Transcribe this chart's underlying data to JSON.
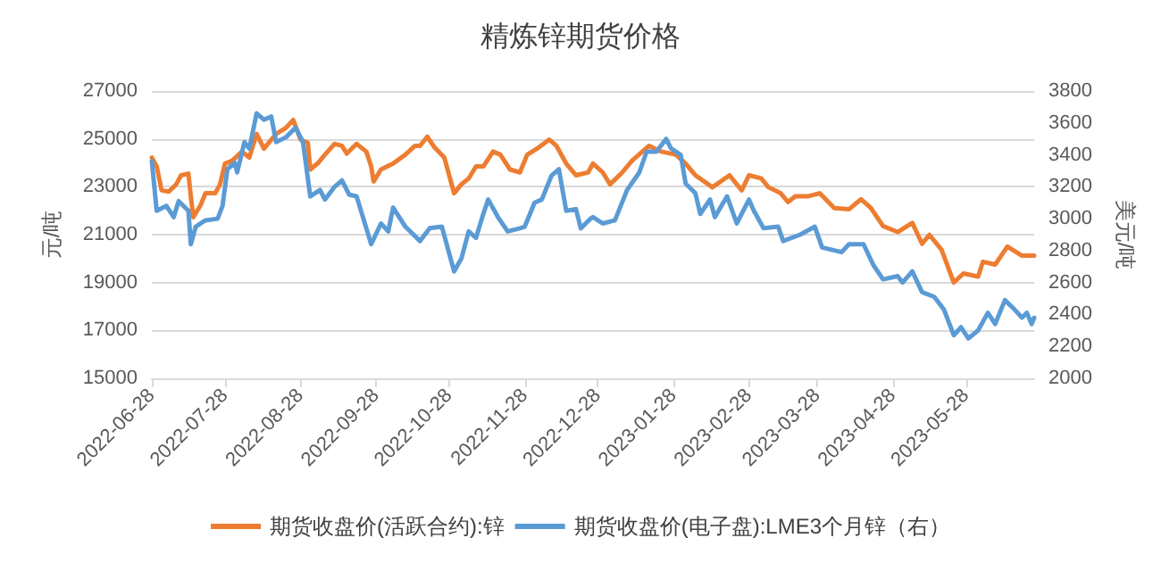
{
  "chart_data": {
    "type": "line",
    "title": "精炼锌期货价格",
    "ylabel": "元/吨",
    "y2label": "美元/吨",
    "xlim": [
      "2022-06-28",
      "2023-06-25"
    ],
    "xticks": [
      "2022-06-28",
      "2022-07-28",
      "2022-08-28",
      "2022-09-28",
      "2022-10-28",
      "2022-11-28",
      "2022-12-28",
      "2023-01-28",
      "2023-02-28",
      "2023-03-28",
      "2023-04-28",
      "2023-05-28"
    ],
    "ylim": [
      15000,
      27000
    ],
    "yticks": [
      15000,
      17000,
      19000,
      21000,
      23000,
      25000,
      27000
    ],
    "y2lim": [
      2000,
      3800
    ],
    "y2ticks": [
      2000,
      2200,
      2400,
      2600,
      2800,
      3000,
      3200,
      3400,
      3600,
      3800
    ],
    "grid": "y",
    "legend": "bottom",
    "marker": "none",
    "line_style": "solid",
    "series": [
      {
        "name": "期货收盘价(活跃合约):锌",
        "color": "#ed7d31",
        "x": [
          "2022-06-28",
          "2022-06-30",
          "2022-07-02",
          "2022-07-05",
          "2022-07-08",
          "2022-07-10",
          "2022-07-13",
          "2022-07-14",
          "2022-07-15",
          "2022-07-18",
          "2022-07-20",
          "2022-07-24",
          "2022-07-26",
          "2022-07-28",
          "2022-07-31",
          "2022-08-04",
          "2022-08-07",
          "2022-08-10",
          "2022-08-13",
          "2022-08-18",
          "2022-08-22",
          "2022-08-25",
          "2022-08-28",
          "2022-08-31",
          "2022-09-01",
          "2022-09-04",
          "2022-09-07",
          "2022-09-11",
          "2022-09-14",
          "2022-09-16",
          "2022-09-20",
          "2022-09-24",
          "2022-09-26",
          "2022-09-27",
          "2022-09-30",
          "2022-10-05",
          "2022-10-10",
          "2022-10-14",
          "2022-10-16",
          "2022-10-19",
          "2022-10-22",
          "2022-10-26",
          "2022-10-30",
          "2022-11-02",
          "2022-11-05",
          "2022-11-08",
          "2022-11-11",
          "2022-11-15",
          "2022-11-18",
          "2022-11-22",
          "2022-11-26",
          "2022-11-29",
          "2022-12-03",
          "2022-12-08",
          "2022-12-11",
          "2022-12-15",
          "2022-12-19",
          "2022-12-24",
          "2022-12-26",
          "2022-12-30",
          "2023-01-02",
          "2023-01-07",
          "2023-01-11",
          "2023-01-18",
          "2023-01-23",
          "2023-01-29",
          "2023-02-02",
          "2023-02-06",
          "2023-02-13",
          "2023-02-20",
          "2023-02-25",
          "2023-02-28",
          "2023-03-05",
          "2023-03-08",
          "2023-03-13",
          "2023-03-16",
          "2023-03-19",
          "2023-03-24",
          "2023-03-29",
          "2023-04-04",
          "2023-04-10",
          "2023-04-15",
          "2023-04-19",
          "2023-04-24",
          "2023-04-30",
          "2023-05-06",
          "2023-05-10",
          "2023-05-13",
          "2023-05-18",
          "2023-05-23",
          "2023-05-27",
          "2023-06-02",
          "2023-06-04",
          "2023-06-09",
          "2023-06-14",
          "2023-06-20",
          "2023-06-25"
        ],
        "values": [
          24220,
          23850,
          22850,
          22800,
          23100,
          23480,
          23550,
          22600,
          21730,
          22230,
          22730,
          22730,
          23100,
          23970,
          24090,
          24470,
          24220,
          25210,
          24590,
          25210,
          25460,
          25790,
          24970,
          24840,
          23720,
          23970,
          24340,
          24790,
          24710,
          24390,
          24790,
          24470,
          23850,
          23220,
          23720,
          23970,
          24340,
          24710,
          24710,
          25090,
          24640,
          24220,
          22730,
          23100,
          23350,
          23850,
          23850,
          24470,
          24340,
          23720,
          23600,
          24340,
          24590,
          24970,
          24710,
          23970,
          23480,
          23600,
          23970,
          23600,
          23100,
          23600,
          24090,
          24710,
          24470,
          24340,
          23970,
          23480,
          22980,
          23480,
          22850,
          23480,
          23350,
          22980,
          22730,
          22360,
          22600,
          22600,
          22730,
          22110,
          22060,
          22480,
          22110,
          21360,
          21110,
          21490,
          20620,
          20990,
          20370,
          19000,
          19380,
          19250,
          19870,
          19750,
          20500,
          20120,
          20120
        ]
      },
      {
        "name": "期货收盘价(电子盘):LME3个月锌（右）",
        "color": "#5b9bd5",
        "axis": "y2",
        "x": [
          "2022-06-28",
          "2022-06-30",
          "2022-07-04",
          "2022-07-07",
          "2022-07-09",
          "2022-07-13",
          "2022-07-14",
          "2022-07-16",
          "2022-07-20",
          "2022-07-25",
          "2022-07-27",
          "2022-07-29",
          "2022-08-01",
          "2022-08-02",
          "2022-08-05",
          "2022-08-07",
          "2022-08-10",
          "2022-08-13",
          "2022-08-16",
          "2022-08-18",
          "2022-08-22",
          "2022-08-26",
          "2022-08-29",
          "2022-09-01",
          "2022-09-05",
          "2022-09-07",
          "2022-09-11",
          "2022-09-14",
          "2022-09-17",
          "2022-09-20",
          "2022-09-26",
          "2022-09-30",
          "2022-10-03",
          "2022-10-05",
          "2022-10-10",
          "2022-10-16",
          "2022-10-20",
          "2022-10-25",
          "2022-10-30",
          "2022-11-02",
          "2022-11-05",
          "2022-11-08",
          "2022-11-11",
          "2022-11-13",
          "2022-11-17",
          "2022-11-21",
          "2022-11-26",
          "2022-11-28",
          "2022-12-02",
          "2022-12-05",
          "2022-12-09",
          "2022-12-12",
          "2022-12-15",
          "2022-12-19",
          "2022-12-21",
          "2022-12-25",
          "2022-12-26",
          "2022-12-30",
          "2023-01-04",
          "2023-01-09",
          "2023-01-14",
          "2023-01-17",
          "2023-01-21",
          "2023-01-25",
          "2023-01-27",
          "2023-01-31",
          "2023-02-02",
          "2023-02-06",
          "2023-02-08",
          "2023-02-12",
          "2023-02-14",
          "2023-02-19",
          "2023-02-23",
          "2023-02-28",
          "2023-03-02",
          "2023-03-06",
          "2023-03-12",
          "2023-03-14",
          "2023-03-21",
          "2023-03-27",
          "2023-03-30",
          "2023-04-07",
          "2023-04-10",
          "2023-04-16",
          "2023-04-20",
          "2023-04-24",
          "2023-04-30",
          "2023-05-02",
          "2023-05-06",
          "2023-05-10",
          "2023-05-15",
          "2023-05-19",
          "2023-05-23",
          "2023-05-26",
          "2023-05-29",
          "2023-06-02",
          "2023-06-06",
          "2023-06-09",
          "2023-06-13",
          "2023-06-17",
          "2023-06-20",
          "2023-06-22",
          "2023-06-24",
          "2023-06-25"
        ],
        "values": [
          3360,
          3050,
          3080,
          3010,
          3110,
          3050,
          2840,
          2950,
          2990,
          3000,
          3080,
          3310,
          3350,
          3290,
          3480,
          3440,
          3660,
          3620,
          3640,
          3480,
          3510,
          3570,
          3480,
          3140,
          3180,
          3120,
          3200,
          3240,
          3150,
          3140,
          2840,
          2970,
          2920,
          3070,
          2950,
          2860,
          2940,
          2950,
          2670,
          2750,
          2920,
          2880,
          3030,
          3120,
          3010,
          2920,
          2940,
          2950,
          3100,
          3120,
          3270,
          3310,
          3050,
          3060,
          2940,
          3000,
          3010,
          2970,
          2990,
          3180,
          3290,
          3420,
          3420,
          3500,
          3440,
          3400,
          3220,
          3160,
          3030,
          3120,
          3010,
          3140,
          2970,
          3120,
          3050,
          2940,
          2950,
          2860,
          2900,
          2950,
          2820,
          2790,
          2840,
          2840,
          2710,
          2620,
          2640,
          2600,
          2670,
          2540,
          2510,
          2430,
          2270,
          2320,
          2250,
          2300,
          2410,
          2340,
          2490,
          2430,
          2380,
          2410,
          2340,
          2380
        ]
      }
    ]
  }
}
